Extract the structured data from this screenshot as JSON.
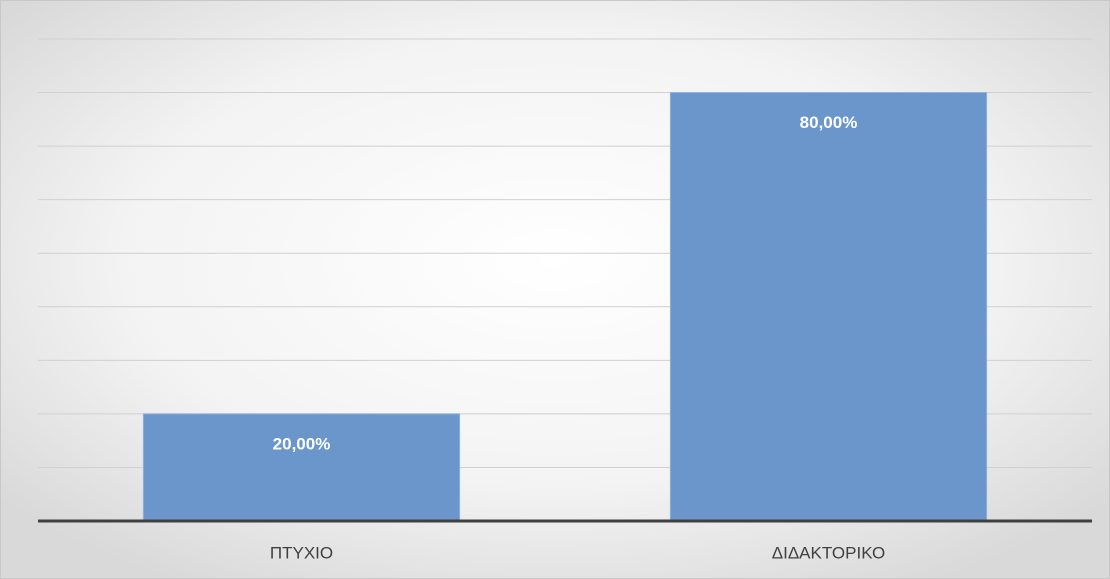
{
  "chart_data": {
    "type": "bar",
    "categories": [
      "ΠΤΥΧΙΟ",
      "ΔΙΔΑΚΤΟΡΙΚΟ"
    ],
    "values": [
      20,
      80
    ],
    "value_labels": [
      "20,00%",
      "80,00%"
    ],
    "color": "#6a96cb",
    "ylim": [
      0,
      90
    ],
    "yticks": [
      0,
      10,
      20,
      30,
      40,
      50,
      60,
      70,
      80,
      90
    ],
    "grid": true
  }
}
